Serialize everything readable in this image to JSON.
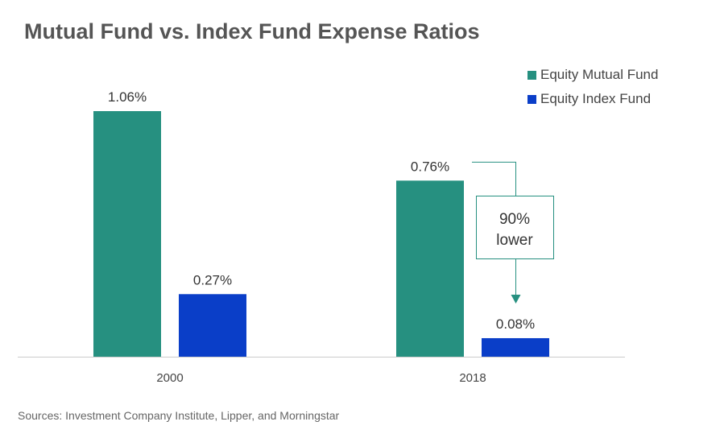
{
  "title": "Mutual Fund vs. Index Fund Expense Ratios",
  "source": "Sources: Investment Company Institute, Lipper, and Morningstar",
  "colors": {
    "mutual": "#269080",
    "index": "#0a3ec8",
    "axis": "#cccccc",
    "annotation": "#269080"
  },
  "chart_data": {
    "type": "bar",
    "title": "Mutual Fund vs. Index Fund Expense Ratios",
    "categories": [
      "2000",
      "2018"
    ],
    "series": [
      {
        "name": "Equity Mutual Fund",
        "values": [
          1.06,
          0.76
        ],
        "labels": [
          "1.06%",
          "0.76%"
        ]
      },
      {
        "name": "Equity Index Fund",
        "values": [
          0.27,
          0.08
        ],
        "labels": [
          "0.27%",
          "0.08%"
        ]
      }
    ],
    "ylim": [
      0,
      1.06
    ],
    "xlabel": "",
    "ylabel": "",
    "grid": false,
    "legend": "top-right",
    "annotation": {
      "line1": "90%",
      "line2": "lower",
      "category": "2018",
      "from_series": 0,
      "to_series": 1
    }
  }
}
